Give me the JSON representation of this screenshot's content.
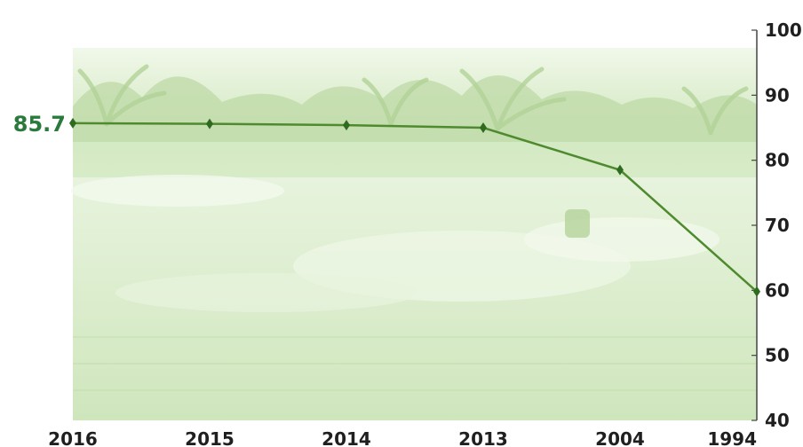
{
  "chart_data": {
    "type": "line",
    "title": "",
    "xlabel": "",
    "ylabel": "",
    "x": [
      "2016",
      "2015",
      "2014",
      "2013",
      "2004",
      "1994"
    ],
    "series": [
      {
        "values": [
          85.7,
          85.6,
          85.4,
          85.0,
          78.5,
          59.8
        ]
      }
    ],
    "ylim": [
      40,
      100
    ],
    "yticks": [
      "100",
      "90",
      "80",
      "70",
      "60",
      "50",
      "40"
    ],
    "y_axis_side": "right",
    "data_label": {
      "text": "85.7",
      "point_index": 0
    },
    "grid": false,
    "legend": "none",
    "background": "faded green photo of palm trees and water spray",
    "colors": {
      "line": "#4e8a2e",
      "marker": "#2f6b1f",
      "data_label": "#2a7a3b",
      "axis": "#444444",
      "background_tint": "#d9ecc9"
    }
  }
}
